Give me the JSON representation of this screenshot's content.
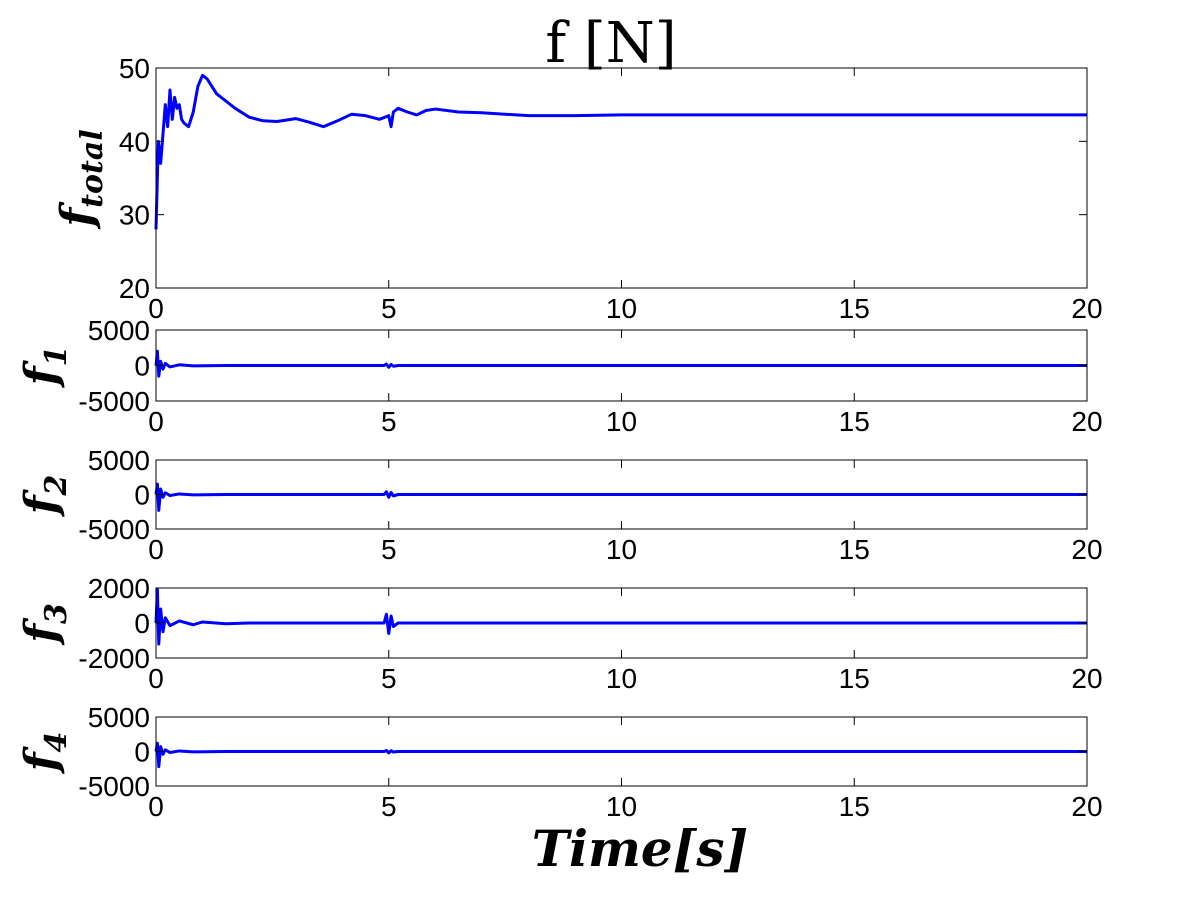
{
  "title": "f [N]",
  "xlabel": "Time[s]",
  "colors": {
    "series": "#0000ff",
    "axes": "#000000",
    "background": "#ffffff"
  },
  "chart_data": [
    {
      "type": "line",
      "ylabel_main": "f",
      "ylabel_sub": "total",
      "xlim": [
        0,
        20
      ],
      "ylim": [
        20,
        50
      ],
      "xticks": [
        0,
        5,
        10,
        15,
        20
      ],
      "yticks": [
        20,
        30,
        40,
        50
      ],
      "grid": false,
      "x": [
        0,
        0.05,
        0.1,
        0.15,
        0.2,
        0.25,
        0.3,
        0.35,
        0.4,
        0.45,
        0.5,
        0.55,
        0.6,
        0.7,
        0.8,
        0.9,
        1.0,
        1.1,
        1.2,
        1.3,
        1.5,
        1.7,
        2.0,
        2.3,
        2.6,
        3.0,
        3.3,
        3.6,
        3.9,
        4.2,
        4.5,
        4.8,
        5.0,
        5.05,
        5.1,
        5.2,
        5.4,
        5.6,
        5.8,
        6.0,
        6.5,
        7.0,
        7.5,
        8.0,
        9.0,
        10.0,
        12.0,
        14.0,
        16.0,
        18.0,
        20.0
      ],
      "values": [
        28,
        40,
        37,
        41,
        45,
        42,
        47,
        43,
        46,
        44.5,
        45,
        43,
        42.5,
        42,
        44,
        47.5,
        49,
        48.5,
        47.5,
        46.5,
        45.5,
        44.5,
        43.3,
        42.8,
        42.7,
        43.1,
        42.6,
        42,
        42.8,
        43.7,
        43.5,
        43,
        43.5,
        42,
        44,
        44.5,
        44,
        43.6,
        44.2,
        44.4,
        44,
        43.9,
        43.7,
        43.5,
        43.5,
        43.6,
        43.6,
        43.6,
        43.6,
        43.6,
        43.6
      ]
    },
    {
      "type": "line",
      "ylabel_main": "f",
      "ylabel_sub": "1",
      "xlim": [
        0,
        20
      ],
      "ylim": [
        -5000,
        5000
      ],
      "xticks": [
        0,
        5,
        10,
        15,
        20
      ],
      "yticks": [
        5000,
        0,
        -5000
      ],
      "grid": false,
      "x": [
        0,
        0.03,
        0.06,
        0.1,
        0.15,
        0.2,
        0.3,
        0.5,
        0.8,
        1.5,
        4.9,
        4.95,
        5.0,
        5.05,
        5.1,
        5.2,
        20
      ],
      "values": [
        0,
        2000,
        -1500,
        600,
        -500,
        300,
        -200,
        100,
        -60,
        0,
        0,
        200,
        -250,
        150,
        -100,
        0,
        0
      ]
    },
    {
      "type": "line",
      "ylabel_main": "f",
      "ylabel_sub": "2",
      "xlim": [
        0,
        20
      ],
      "ylim": [
        -5000,
        5000
      ],
      "xticks": [
        0,
        5,
        10,
        15,
        20
      ],
      "yticks": [
        5000,
        0,
        -5000
      ],
      "grid": false,
      "x": [
        0,
        0.03,
        0.06,
        0.1,
        0.15,
        0.2,
        0.3,
        0.5,
        0.8,
        1.5,
        4.9,
        4.95,
        5.0,
        5.05,
        5.1,
        5.2,
        20
      ],
      "values": [
        0,
        1500,
        -2300,
        800,
        -400,
        250,
        -150,
        80,
        -50,
        0,
        0,
        400,
        -400,
        300,
        -200,
        0,
        0
      ]
    },
    {
      "type": "line",
      "ylabel_main": "f",
      "ylabel_sub": "3",
      "xlim": [
        0,
        20
      ],
      "ylim": [
        -2000,
        2000
      ],
      "xticks": [
        0,
        5,
        10,
        15,
        20
      ],
      "yticks": [
        2000,
        0,
        -2000
      ],
      "grid": false,
      "x": [
        0,
        0.03,
        0.06,
        0.1,
        0.15,
        0.2,
        0.3,
        0.5,
        0.8,
        1.0,
        1.5,
        2.0,
        4.9,
        4.95,
        5.0,
        5.05,
        5.1,
        5.2,
        20
      ],
      "values": [
        0,
        1900,
        -1200,
        800,
        -500,
        300,
        -150,
        120,
        -100,
        60,
        -40,
        0,
        0,
        500,
        -600,
        400,
        -200,
        0,
        0
      ]
    },
    {
      "type": "line",
      "ylabel_main": "f",
      "ylabel_sub": "4",
      "xlim": [
        0,
        20
      ],
      "ylim": [
        -5000,
        5000
      ],
      "xticks": [
        0,
        5,
        10,
        15,
        20
      ],
      "yticks": [
        5000,
        0,
        -5000
      ],
      "grid": false,
      "x": [
        0,
        0.03,
        0.06,
        0.1,
        0.15,
        0.2,
        0.3,
        0.5,
        0.8,
        1.5,
        4.9,
        4.95,
        5.0,
        5.05,
        5.1,
        5.2,
        20
      ],
      "values": [
        0,
        1200,
        -2200,
        700,
        -400,
        250,
        -150,
        80,
        -50,
        0,
        0,
        150,
        -200,
        120,
        -80,
        0,
        0
      ]
    }
  ]
}
